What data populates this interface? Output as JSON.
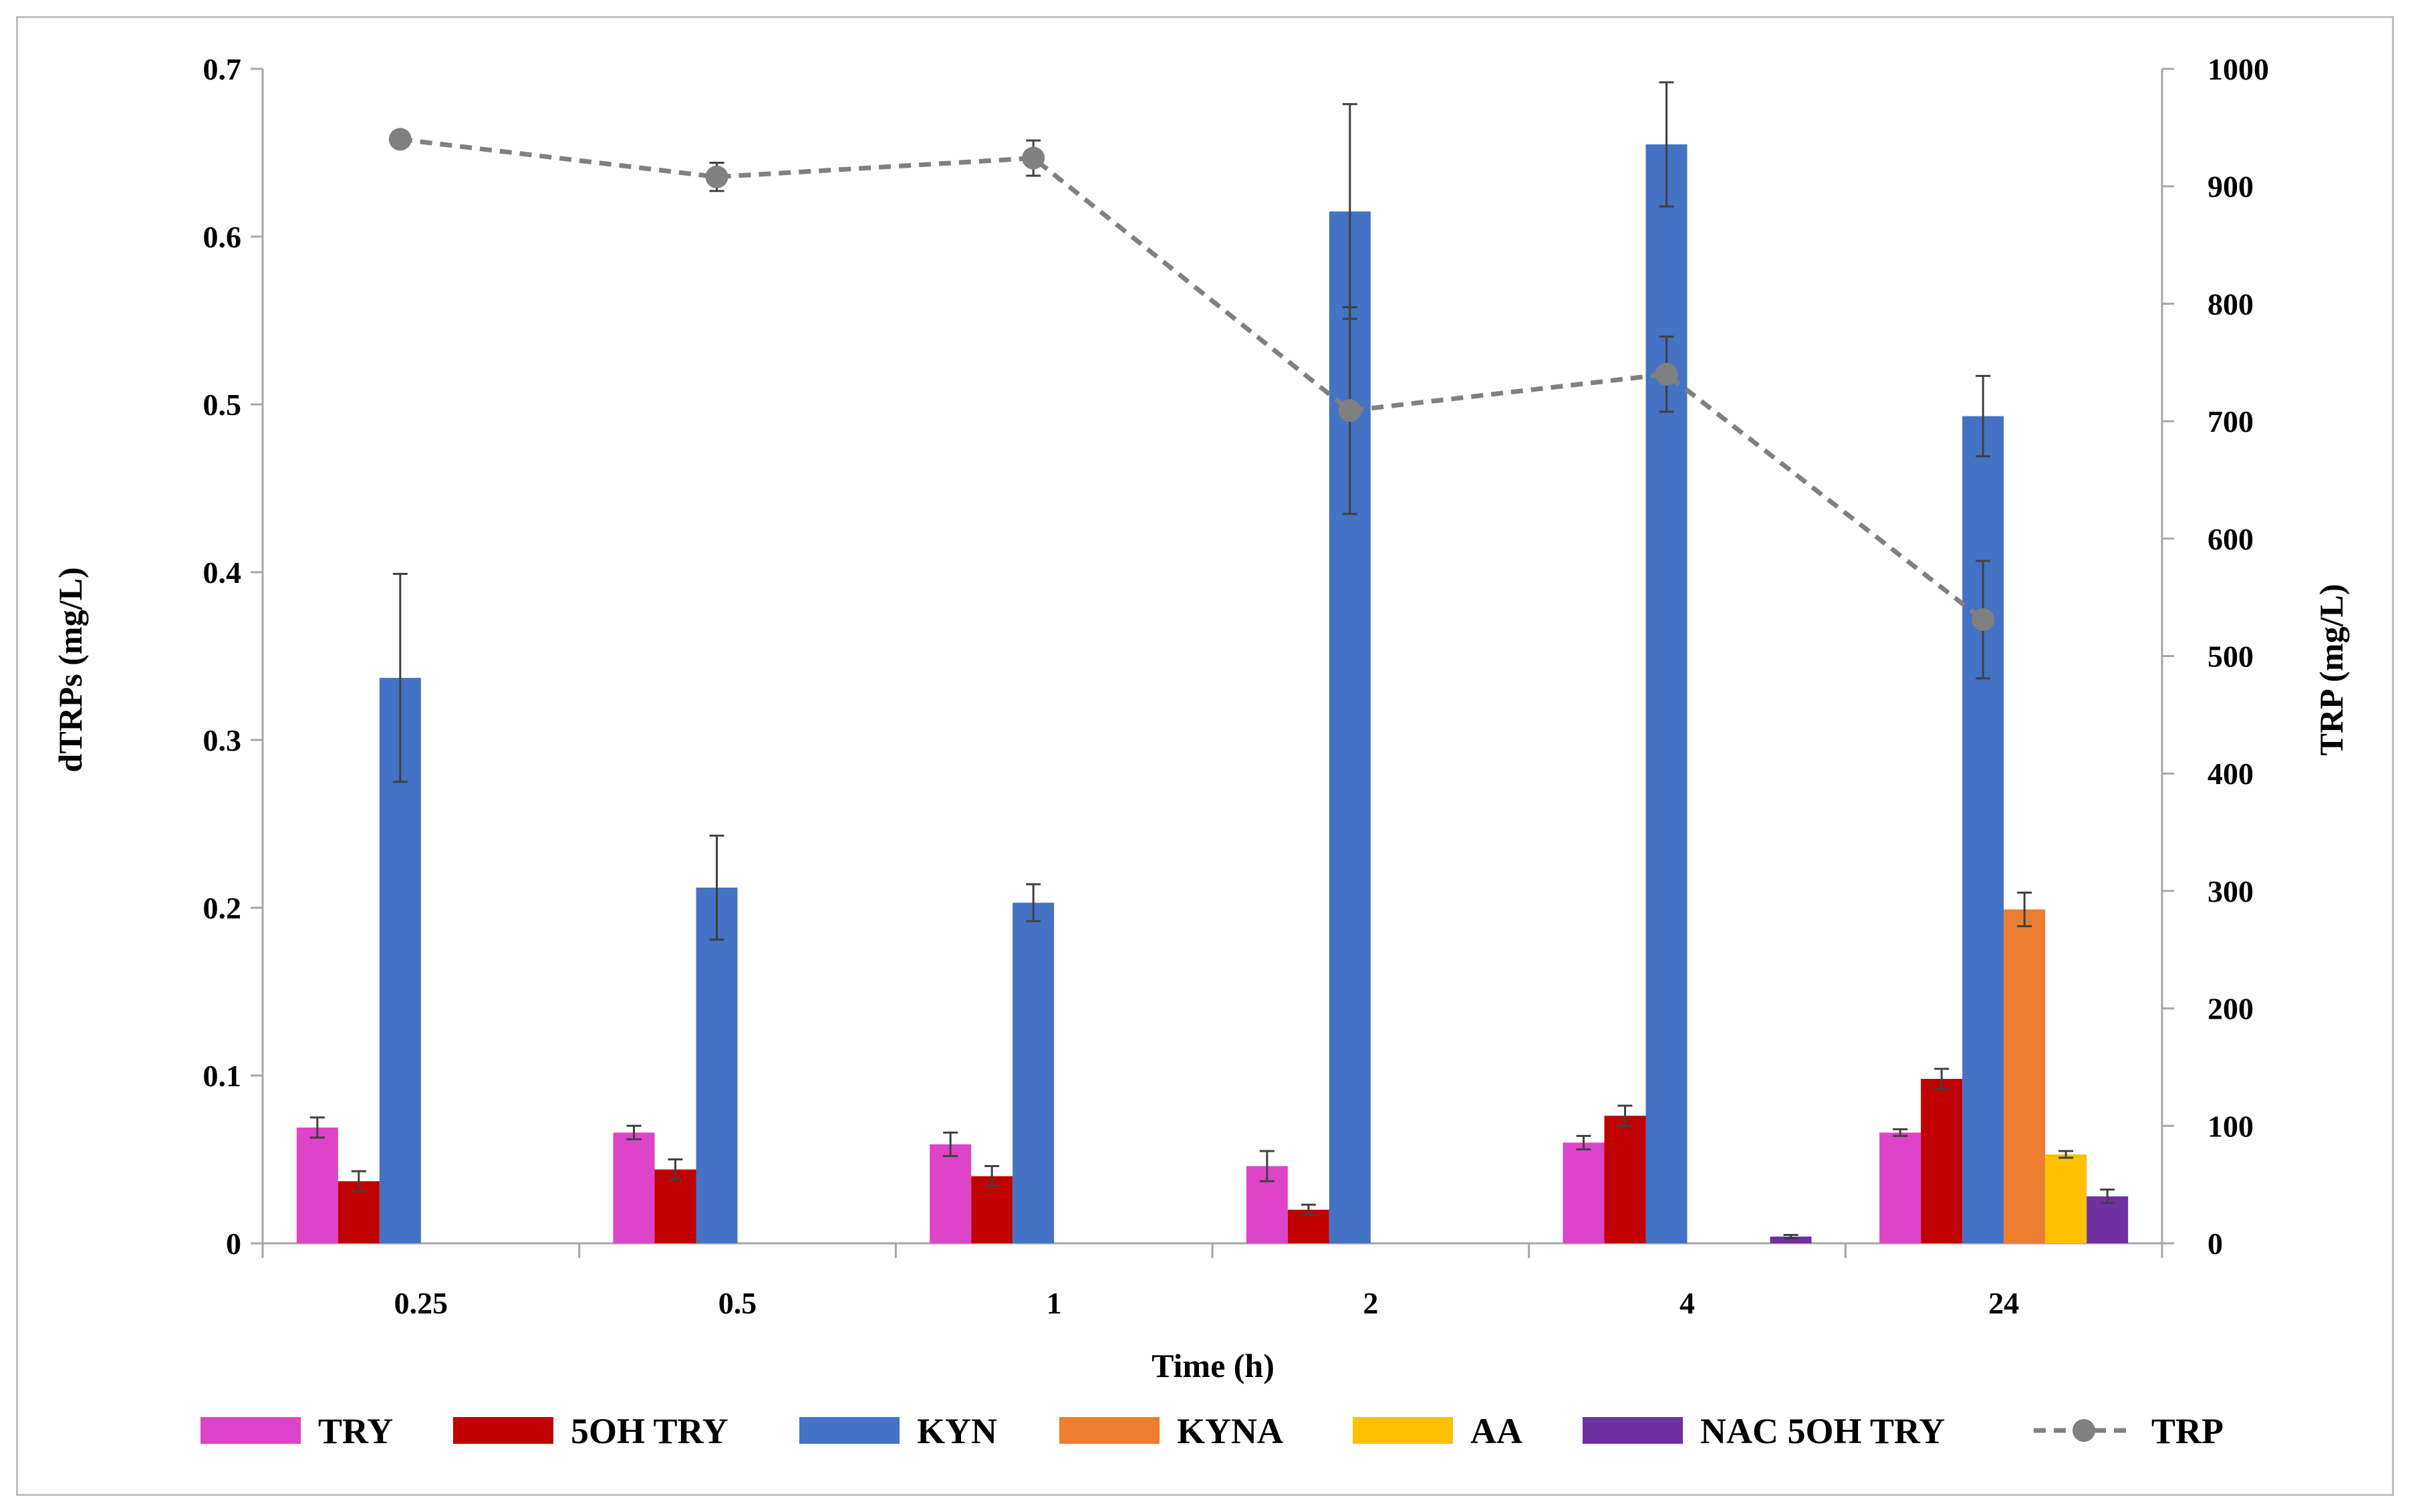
{
  "chart_data": {
    "type": "bar",
    "title": "",
    "xlabel": "Time (h)",
    "ylabel": "dTRPs (mg/L)",
    "y2label": "TRP (mg/L)",
    "ylim": [
      0,
      0.7
    ],
    "y2lim": [
      0,
      1000
    ],
    "yticks": [
      "0",
      "0.1",
      "0.2",
      "0.3",
      "0.4",
      "0.5",
      "0.6",
      "0.7"
    ],
    "y2ticks": [
      "0",
      "100",
      "200",
      "300",
      "400",
      "500",
      "600",
      "700",
      "800",
      "900",
      "1000"
    ],
    "categories": [
      "0.25",
      "0.5",
      "1",
      "2",
      "4",
      "24"
    ],
    "series": [
      {
        "name": "TRY",
        "color": "#dd44c8",
        "values": [
          0.069,
          0.066,
          0.059,
          0.046,
          0.06,
          0.066
        ],
        "errors": [
          0.006,
          0.004,
          0.007,
          0.009,
          0.004,
          0.002
        ]
      },
      {
        "name": "5OH TRY",
        "color": "#c00000",
        "values": [
          0.037,
          0.044,
          0.04,
          0.02,
          0.076,
          0.098
        ],
        "errors": [
          0.006,
          0.006,
          0.006,
          0.003,
          0.006,
          0.006
        ]
      },
      {
        "name": "KYN",
        "color": "#4472c4",
        "values": [
          0.337,
          0.212,
          0.203,
          0.615,
          0.655,
          0.493
        ],
        "errors": [
          0.062,
          0.031,
          0.011,
          0.064,
          0.037,
          0.024
        ]
      },
      {
        "name": "KYNA",
        "color": "#ed7d31",
        "values": [
          0,
          0,
          0,
          0,
          0,
          0.199
        ],
        "errors": [
          0,
          0,
          0,
          0,
          0,
          0.01
        ]
      },
      {
        "name": "AA",
        "color": "#ffc000",
        "values": [
          0,
          0,
          0,
          0,
          0,
          0.053
        ],
        "errors": [
          0,
          0,
          0,
          0,
          0,
          0.002
        ]
      },
      {
        "name": "NAC 5OH TRY",
        "color": "#7030a0",
        "values": [
          0,
          0,
          0,
          0,
          0.004,
          0.028
        ],
        "errors": [
          0,
          0,
          0,
          0,
          0.001,
          0.004
        ]
      }
    ],
    "line_series": {
      "name": "TRP",
      "color": "#808080",
      "axis": "secondary",
      "style": "dashed",
      "values": [
        940,
        908,
        924,
        709,
        740,
        531
      ],
      "errors": [
        0,
        12,
        15,
        88,
        32,
        50
      ]
    },
    "legend": "bottom"
  }
}
